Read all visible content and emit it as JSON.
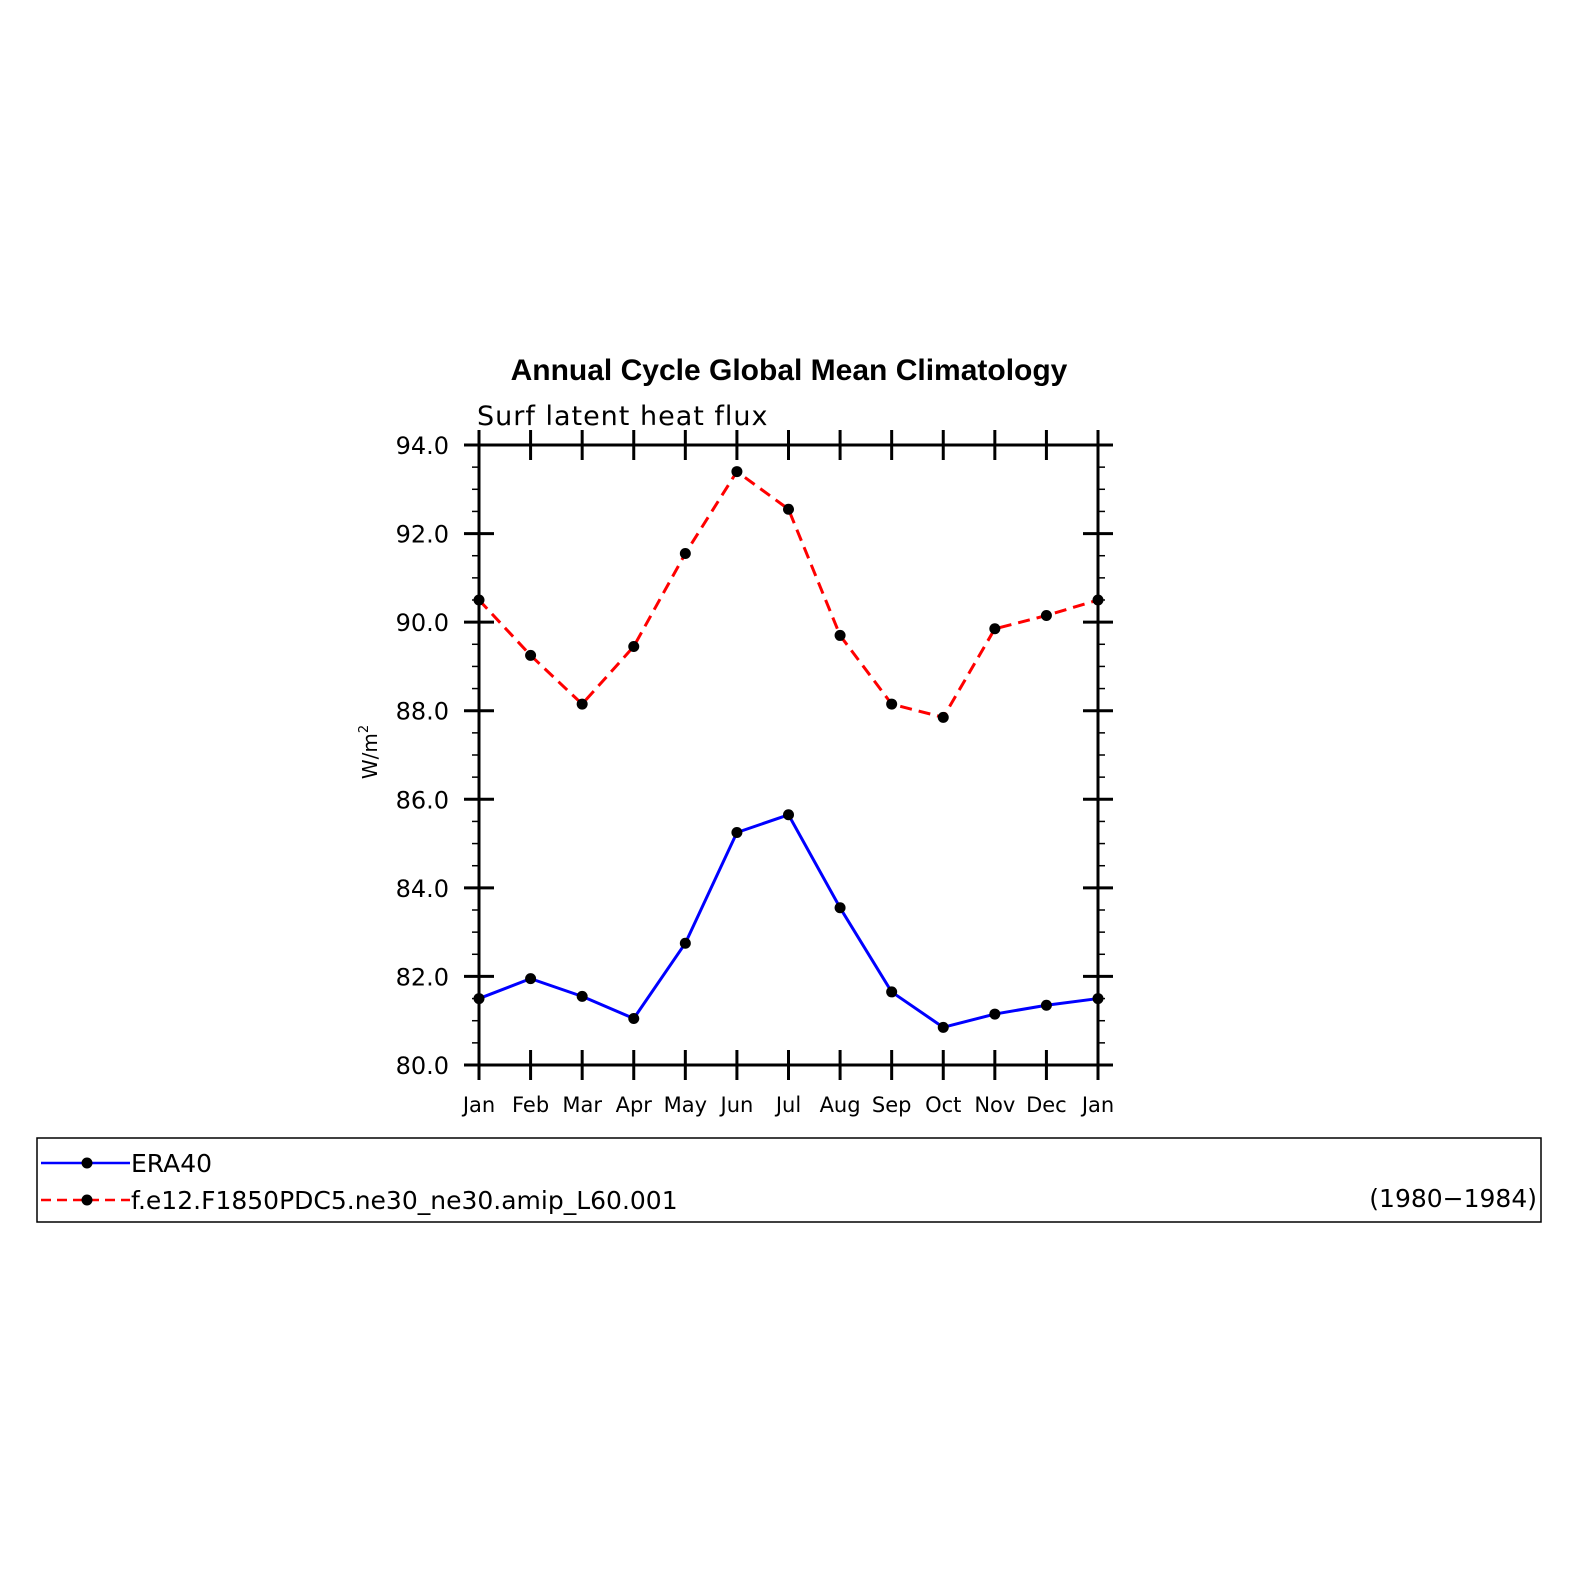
{
  "chart_data": {
    "type": "line",
    "title": "Annual Cycle Global Mean Climatology",
    "subtitle": "Surf latent heat flux",
    "ylabel_base": "W/m",
    "ylabel_sup": "2",
    "xlabel": "",
    "categories": [
      "Jan",
      "Feb",
      "Mar",
      "Apr",
      "May",
      "Jun",
      "Jul",
      "Aug",
      "Sep",
      "Oct",
      "Nov",
      "Dec",
      "Jan"
    ],
    "ylim": [
      80.0,
      94.0
    ],
    "yticks": [
      80.0,
      82.0,
      84.0,
      86.0,
      88.0,
      90.0,
      92.0,
      94.0
    ],
    "ytick_labels": [
      "80.0",
      "82.0",
      "84.0",
      "86.0",
      "88.0",
      "90.0",
      "92.0",
      "94.0"
    ],
    "grid": false,
    "legend_position": "bottom",
    "legend_note": "(1980−1984)",
    "series": [
      {
        "name": "ERA40",
        "color": "#0000ff",
        "dash": "solid",
        "values": [
          81.5,
          81.95,
          81.55,
          81.05,
          82.75,
          85.25,
          85.65,
          83.55,
          81.65,
          80.85,
          81.15,
          81.35,
          81.5
        ]
      },
      {
        "name": "f.e12.F1850PDC5.ne30_ne30.amip_L60.001",
        "color": "#ff0000",
        "dash": "dashed",
        "values": [
          90.5,
          89.25,
          88.15,
          89.45,
          91.55,
          93.4,
          92.55,
          89.7,
          88.15,
          87.85,
          89.85,
          90.15,
          90.5
        ]
      }
    ]
  }
}
